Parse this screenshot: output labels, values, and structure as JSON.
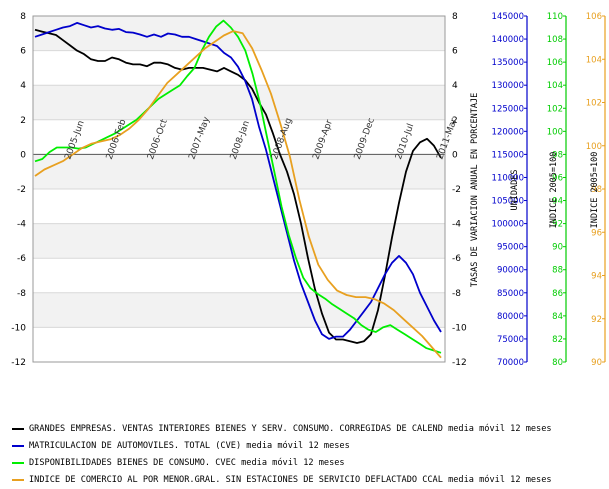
{
  "chart_data": {
    "type": "line",
    "x_ticks": [
      "2005-Jun",
      "2006-Feb",
      "2006-Oct",
      "2007-May",
      "2008-Jan",
      "2008-Aug",
      "2009-Apr",
      "2009-Dec",
      "2010-Jul",
      "2011-Mar"
    ],
    "left_axis": {
      "ylim": [
        -12,
        8
      ],
      "ticks": [
        8,
        6,
        4,
        2,
        0,
        -2,
        -4,
        -6,
        -8,
        -10,
        -12
      ]
    },
    "right_axis": {
      "label": "TASAS DE VARIACION ANUAL EN PORCENTAJE",
      "ylim": [
        -12,
        8
      ],
      "ticks": [
        8,
        6,
        4,
        2,
        0,
        -2,
        -4,
        -6,
        -8,
        -10,
        -12
      ]
    },
    "units_axis": {
      "label": "UNIDADES",
      "ylim": [
        70000,
        145000
      ],
      "ticks": [
        145000,
        140000,
        135000,
        130000,
        125000,
        120000,
        115000,
        110000,
        105000,
        100000,
        95000,
        90000,
        85000,
        80000,
        75000,
        70000
      ],
      "color": "#0000cc"
    },
    "green_axis": {
      "label": "INDICE 2005=100",
      "ylim": [
        80,
        110
      ],
      "ticks": [
        110,
        108,
        106,
        104,
        102,
        100,
        98,
        96,
        94,
        92,
        90,
        88,
        86,
        84,
        82,
        80
      ],
      "color": "#00cc00"
    },
    "orange_axis": {
      "label": "INDICE 2005=100",
      "ylim": [
        90,
        106
      ],
      "ticks": [
        106,
        104,
        102,
        100,
        98,
        96,
        94,
        92,
        90
      ],
      "color": "#e8a020"
    },
    "grid": true,
    "series": [
      {
        "name": "GRANDES EMPRESAS. VENTAS INTERIORES BIENES Y SERV. CONSUMO. CORREGIDAS DE CALEND media móvil 12 meses",
        "color": "#000000",
        "axis": "left",
        "values": [
          7.2,
          7.1,
          7.0,
          6.9,
          6.6,
          6.3,
          6.0,
          5.8,
          5.5,
          5.4,
          5.4,
          5.6,
          5.5,
          5.3,
          5.2,
          5.2,
          5.1,
          5.3,
          5.3,
          5.2,
          5.0,
          4.9,
          5.0,
          5.0,
          5.0,
          4.9,
          4.8,
          5.0,
          4.8,
          4.6,
          4.3,
          3.8,
          3.0,
          2.3,
          1.2,
          0.0,
          -1.0,
          -2.3,
          -4.0,
          -6.0,
          -7.8,
          -9.2,
          -10.3,
          -10.7,
          -10.7,
          -10.8,
          -10.9,
          -10.8,
          -10.4,
          -9.0,
          -7.0,
          -4.8,
          -2.8,
          -1.0,
          0.2,
          0.7,
          0.9,
          0.5,
          -0.2
        ]
      },
      {
        "name": "MATRICULACION DE AUTOMOVILES. TOTAL (CVE) media móvil 12 meses",
        "color": "#0000cc",
        "axis": "units",
        "values": [
          140500,
          141000,
          141500,
          142000,
          142500,
          142800,
          143500,
          143000,
          142500,
          142800,
          142300,
          142000,
          142200,
          141500,
          141400,
          141000,
          140500,
          141000,
          140500,
          141200,
          141000,
          140500,
          140500,
          140000,
          139500,
          139000,
          138500,
          137000,
          136000,
          134000,
          131000,
          127000,
          121000,
          116000,
          110000,
          104000,
          98000,
          92000,
          87000,
          83000,
          79000,
          76000,
          75000,
          75500,
          75500,
          77000,
          79000,
          81000,
          83000,
          86000,
          89000,
          91500,
          93000,
          91500,
          89000,
          85000,
          82000,
          79000,
          76500
        ]
      },
      {
        "name": "DISPONIBILIDADES BIENES DE CONSUMO. CVEC media móvil 12 meses",
        "color": "#00ee00",
        "axis": "green",
        "values": [
          97.4,
          97.6,
          98.2,
          98.6,
          98.6,
          98.6,
          98.5,
          98.6,
          98.9,
          99.2,
          99.5,
          99.8,
          100.2,
          100.6,
          101.0,
          101.6,
          102.2,
          102.8,
          103.2,
          103.6,
          104.0,
          104.8,
          105.5,
          107.0,
          108.2,
          109.1,
          109.6,
          109.0,
          108.2,
          107.0,
          105.0,
          102.5,
          99.5,
          96.5,
          93.5,
          91.0,
          89.0,
          87.3,
          86.4,
          85.9,
          85.5,
          85.0,
          84.6,
          84.2,
          83.8,
          83.2,
          82.8,
          82.6,
          83.0,
          83.2,
          82.8,
          82.4,
          82.0,
          81.6,
          81.2,
          81.0,
          80.8
        ]
      },
      {
        "name": "INDICE DE COMERCIO AL POR MENOR.GRAL. SIN ESTACIONES DE SERVICIO DEFLACTADO CCAL media móvil 12 meses",
        "color": "#e8a020",
        "axis": "orange",
        "values": [
          98.6,
          98.9,
          99.1,
          99.3,
          99.6,
          99.9,
          100.1,
          100.2,
          100.3,
          100.5,
          100.8,
          101.2,
          101.7,
          102.3,
          102.9,
          103.3,
          103.7,
          104.1,
          104.5,
          104.8,
          105.1,
          105.3,
          105.2,
          104.5,
          103.5,
          102.4,
          101.0,
          99.5,
          97.5,
          95.8,
          94.5,
          93.8,
          93.3,
          93.1,
          93.0,
          93.0,
          92.9,
          92.7,
          92.4,
          92.0,
          91.6,
          91.2,
          90.7,
          90.2
        ]
      }
    ]
  }
}
